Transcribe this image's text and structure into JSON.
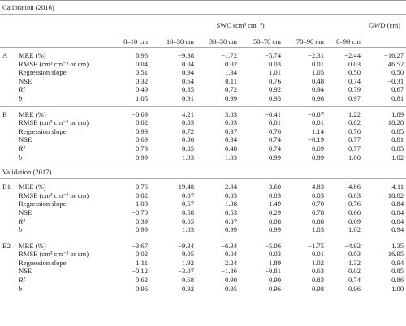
{
  "header": {
    "swc": "SWC (cm³ cm⁻³)",
    "gwd": "GWD (cm)",
    "depths": [
      "0–10 cm",
      "10–30 cm",
      "30–50 cm",
      "50–70 cm",
      "70–90 cm",
      "0–90 cm"
    ]
  },
  "sections": [
    {
      "title": "Calibration (2016)",
      "groups": [
        {
          "label": "A",
          "rows": [
            {
              "metric": "MRE (%)",
              "values": [
                "6.96",
                "−9.38",
                "−1.72",
                "−5.74",
                "−2.31",
                "−2.44",
                "−16.27"
              ]
            },
            {
              "metric": "RMSE (cm³ cm⁻³ or cm)",
              "values": [
                "0.04",
                "0.04",
                "0.02",
                "0.03",
                "0.01",
                "0.03",
                "46.52"
              ]
            },
            {
              "metric": "Regression slope",
              "values": [
                "0.51",
                "0.94",
                "1.34",
                "1.01",
                "1.05",
                "0.50",
                "0.50"
              ]
            },
            {
              "metric": "NSE",
              "values": [
                "0.32",
                "0.64",
                "0.11",
                "0.76",
                "0.48",
                "0.74",
                "−0.31"
              ]
            },
            {
              "metric": "R²",
              "values": [
                "0.49",
                "0.85",
                "0.72",
                "0.92",
                "0.94",
                "0.79",
                "0.67"
              ]
            },
            {
              "metric": "b",
              "values": [
                "1.05",
                "0.91",
                "0.99",
                "0.95",
                "0.98",
                "0.97",
                "0.81"
              ]
            }
          ]
        },
        {
          "label": "B",
          "rows": [
            {
              "metric": "MRE (%)",
              "values": [
                "−0.69",
                "4.21",
                "3.83",
                "−0.41",
                "−0.87",
                "1.22",
                "1.89"
              ]
            },
            {
              "metric": "RMSE (cm³ cm⁻³ or cm)",
              "values": [
                "0.02",
                "0.03",
                "0.03",
                "0.01",
                "0.01",
                "0.02",
                "18.28"
              ]
            },
            {
              "metric": "Regression slope",
              "values": [
                "0.93",
                "0.72",
                "0.37",
                "0.76",
                "1.14",
                "0.76",
                "0.85"
              ]
            },
            {
              "metric": "NSE",
              "values": [
                "0.69",
                "0.80",
                "0.34",
                "0.74",
                "−0.19",
                "0.77",
                "0.81"
              ]
            },
            {
              "metric": "R²",
              "values": [
                "0.73",
                "0.85",
                "0.48",
                "0.74",
                "0.69",
                "0.77",
                "0.85"
              ]
            },
            {
              "metric": "b",
              "values": [
                "0.99",
                "1.03",
                "1.03",
                "0.99",
                "0.99",
                "1.00",
                "1.02"
              ]
            }
          ]
        }
      ]
    },
    {
      "title": "Validation (2017)",
      "groups": [
        {
          "label": "B1",
          "rows": [
            {
              "metric": "MRE (%)",
              "values": [
                "−0.76",
                "19.48",
                "−2.84",
                "3.60",
                "4.83",
                "4.86",
                "−4.11"
              ]
            },
            {
              "metric": "RMSE (cm³ cm⁻³ or cm)",
              "values": [
                "0.02",
                "0.07",
                "0.03",
                "0.03",
                "0.03",
                "0.03",
                "18.02"
              ]
            },
            {
              "metric": "Regression slope",
              "values": [
                "1.03",
                "0.57",
                "1.38",
                "1.49",
                "0.70",
                "0.76",
                "0.84"
              ]
            },
            {
              "metric": "NSE",
              "values": [
                "−0.70",
                "0.58",
                "0.53",
                "0.29",
                "0.78",
                "0.66",
                "0.84"
              ]
            },
            {
              "metric": "R²",
              "values": [
                "0.39",
                "0.65",
                "0.87",
                "0.88",
                "0.88",
                "0.69",
                "0.84"
              ]
            },
            {
              "metric": "b",
              "values": [
                "0.99",
                "1.03",
                "0.99",
                "0.99",
                "1.03",
                "1.02",
                "0.94"
              ]
            }
          ]
        },
        {
          "label": "B2",
          "rows": [
            {
              "metric": "MRE (%)",
              "values": [
                "−3.67",
                "−9.34",
                "−6.34",
                "−5.06",
                "−1.75",
                "−4.92",
                "1.35"
              ]
            },
            {
              "metric": "RMSE (cm³ cm⁻³ or cm)",
              "values": [
                "0.02",
                "0.05",
                "0.04",
                "0.03",
                "0.01",
                "0.03",
                "16.95"
              ]
            },
            {
              "metric": "Regression slope",
              "values": [
                "1.11",
                "1.92",
                "2.24",
                "1.89",
                "1.02",
                "1.32",
                "0.94"
              ]
            },
            {
              "metric": "NSE",
              "values": [
                "−0.12",
                "−3.07",
                "−1.86",
                "−0.81",
                "0.63",
                "0.02",
                "0.85"
              ]
            },
            {
              "metric": "R²",
              "values": [
                "0.62",
                "0.68",
                "0.90",
                "0.90",
                "0.83",
                "0.74",
                "0.86"
              ]
            },
            {
              "metric": "b",
              "values": [
                "0.96",
                "0.92",
                "0.95",
                "0.96",
                "0.98",
                "0.96",
                "1.00"
              ]
            }
          ]
        }
      ]
    }
  ]
}
